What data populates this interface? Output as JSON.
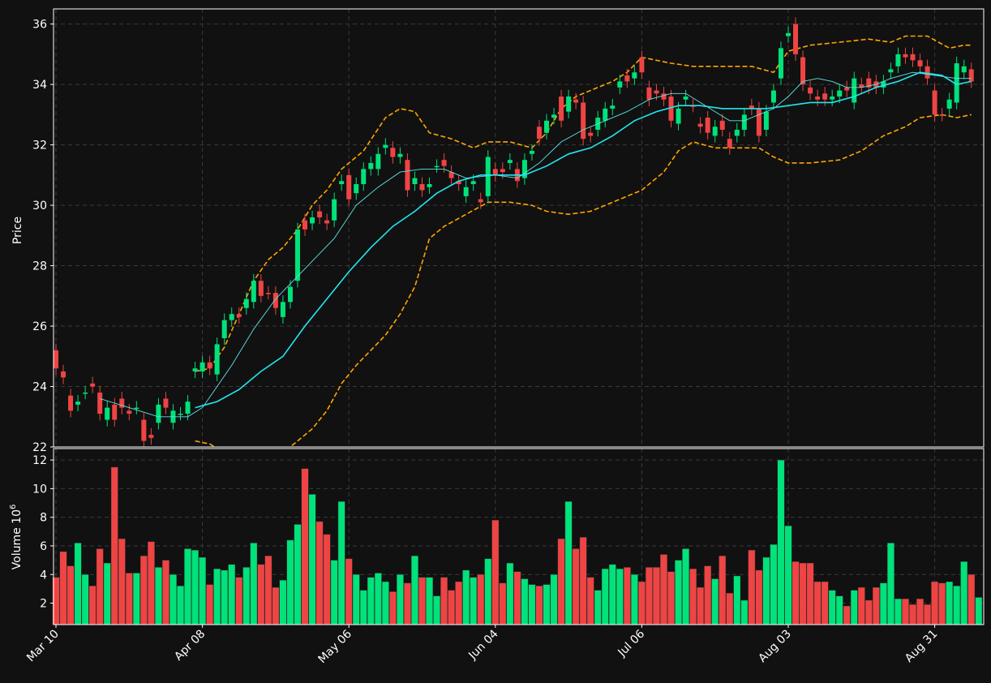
{
  "chart_data": {
    "type": "candlestick",
    "price_panel": {
      "ylabel": "Price",
      "ylim": [
        22,
        36.5
      ],
      "yticks": [
        "22",
        "24",
        "26",
        "28",
        "30",
        "32",
        "34",
        "36"
      ],
      "grid": true,
      "overlays": [
        "moving average (fast)",
        "moving average (slow)",
        "upper and lower bands"
      ]
    },
    "volume_panel": {
      "ylabel": "Volume",
      "ylabel_exponent": "10",
      "ylabel_power": "6",
      "ylim": [
        0.5,
        12.8
      ],
      "yticks": [
        "2",
        "4",
        "6",
        "8",
        "10",
        "12"
      ],
      "grid": true
    },
    "xticks": [
      {
        "label": "Mar 10",
        "index": 0
      },
      {
        "label": "Apr 08",
        "index": 20
      },
      {
        "label": "May 06",
        "index": 40
      },
      {
        "label": "Jun 04",
        "index": 60
      },
      {
        "label": "Jul 06",
        "index": 80
      },
      {
        "label": "Aug 03",
        "index": 100
      },
      {
        "label": "Aug 31",
        "index": 120
      }
    ],
    "colors": {
      "background": "#111111",
      "up": "#00e27a",
      "down": "#ef4444",
      "ma_fast": "#5ee6e6",
      "ma_slow": "#22e6f0",
      "bands": "#ffa500",
      "grid": "#3a3a3a",
      "frame": "#ffffff"
    },
    "ohlc_points": [
      [
        0,
        25.2,
        24.6,
        "down"
      ],
      [
        1,
        24.5,
        24.3,
        "down"
      ],
      [
        2,
        23.7,
        23.2,
        "down"
      ],
      [
        3,
        23.4,
        23.5,
        "up"
      ],
      [
        4,
        23.8,
        23.8,
        "up"
      ],
      [
        5,
        24.1,
        24.0,
        "down"
      ],
      [
        6,
        23.8,
        23.1,
        "down"
      ],
      [
        7,
        22.9,
        23.3,
        "up"
      ],
      [
        8,
        23.4,
        22.9,
        "down"
      ],
      [
        9,
        23.6,
        23.3,
        "down"
      ],
      [
        10,
        23.2,
        23.1,
        "down"
      ],
      [
        11,
        23.3,
        23.3,
        "up"
      ],
      [
        12,
        22.9,
        22.2,
        "down"
      ],
      [
        13,
        22.4,
        22.3,
        "down"
      ],
      [
        14,
        22.8,
        23.4,
        "up"
      ],
      [
        15,
        23.6,
        23.3,
        "down"
      ],
      [
        16,
        22.8,
        23.2,
        "up"
      ],
      [
        17,
        23.1,
        23.1,
        "up"
      ],
      [
        18,
        23.1,
        23.5,
        "up"
      ],
      [
        19,
        24.5,
        24.6,
        "up"
      ],
      [
        20,
        24.5,
        24.8,
        "up"
      ],
      [
        21,
        24.8,
        24.6,
        "down"
      ],
      [
        22,
        24.4,
        25.4,
        "up"
      ],
      [
        23,
        25.6,
        26.2,
        "up"
      ],
      [
        24,
        26.2,
        26.4,
        "up"
      ],
      [
        25,
        26.4,
        26.3,
        "down"
      ],
      [
        26,
        26.6,
        26.9,
        "up"
      ],
      [
        27,
        26.8,
        27.5,
        "up"
      ],
      [
        28,
        27.5,
        27.0,
        "down"
      ],
      [
        29,
        27.1,
        27.1,
        "down"
      ],
      [
        30,
        27.1,
        26.6,
        "down"
      ],
      [
        31,
        26.3,
        26.8,
        "up"
      ],
      [
        32,
        26.8,
        27.3,
        "up"
      ],
      [
        33,
        27.5,
        29.2,
        "up"
      ],
      [
        34,
        29.5,
        29.2,
        "down"
      ],
      [
        35,
        29.4,
        29.6,
        "up"
      ],
      [
        36,
        29.8,
        29.6,
        "down"
      ],
      [
        37,
        29.5,
        29.4,
        "down"
      ],
      [
        38,
        29.5,
        30.2,
        "up"
      ],
      [
        39,
        30.7,
        30.8,
        "up"
      ],
      [
        40,
        31.0,
        30.2,
        "down"
      ],
      [
        41,
        30.4,
        30.7,
        "up"
      ],
      [
        42,
        30.7,
        31.2,
        "up"
      ],
      [
        43,
        31.2,
        31.4,
        "up"
      ],
      [
        44,
        31.2,
        31.7,
        "up"
      ],
      [
        45,
        31.9,
        32.0,
        "up"
      ],
      [
        46,
        31.9,
        31.6,
        "down"
      ],
      [
        47,
        31.7,
        31.6,
        "up"
      ],
      [
        48,
        31.5,
        30.5,
        "down"
      ],
      [
        49,
        30.7,
        30.9,
        "up"
      ],
      [
        50,
        30.7,
        30.5,
        "down"
      ],
      [
        51,
        30.6,
        30.7,
        "up"
      ],
      [
        52,
        31.3,
        31.3,
        "up"
      ],
      [
        53,
        31.5,
        31.3,
        "down"
      ],
      [
        54,
        31.1,
        30.9,
        "down"
      ],
      [
        55,
        30.8,
        30.7,
        "down"
      ],
      [
        56,
        30.3,
        30.6,
        "up"
      ],
      [
        57,
        30.7,
        30.8,
        "up"
      ],
      [
        58,
        30.2,
        30.1,
        "down"
      ],
      [
        59,
        30.3,
        31.6,
        "up"
      ],
      [
        60,
        31.2,
        31.0,
        "down"
      ],
      [
        61,
        31.2,
        31.1,
        "down"
      ],
      [
        62,
        31.4,
        31.5,
        "up"
      ],
      [
        63,
        31.2,
        30.8,
        "down"
      ],
      [
        64,
        30.9,
        31.5,
        "up"
      ],
      [
        65,
        31.7,
        31.8,
        "up"
      ],
      [
        66,
        32.6,
        32.2,
        "down"
      ],
      [
        67,
        32.4,
        32.8,
        "up"
      ],
      [
        68,
        32.9,
        33.0,
        "up"
      ],
      [
        69,
        33.6,
        32.8,
        "down"
      ],
      [
        70,
        33.1,
        33.6,
        "up"
      ],
      [
        71,
        33.5,
        33.4,
        "down"
      ],
      [
        72,
        33.4,
        32.2,
        "down"
      ],
      [
        73,
        32.4,
        32.3,
        "down"
      ],
      [
        74,
        32.5,
        32.9,
        "up"
      ],
      [
        75,
        32.8,
        33.2,
        "up"
      ],
      [
        76,
        33.2,
        33.3,
        "up"
      ],
      [
        77,
        33.9,
        34.1,
        "up"
      ],
      [
        78,
        34.3,
        34.1,
        "down"
      ],
      [
        79,
        34.2,
        34.4,
        "up"
      ],
      [
        80,
        34.9,
        34.4,
        "down"
      ],
      [
        81,
        33.9,
        33.5,
        "down"
      ],
      [
        82,
        33.8,
        33.7,
        "down"
      ],
      [
        83,
        33.7,
        33.5,
        "down"
      ],
      [
        84,
        33.6,
        32.8,
        "down"
      ],
      [
        85,
        32.7,
        33.2,
        "up"
      ],
      [
        86,
        33.5,
        33.6,
        "up"
      ],
      [
        87,
        33.3,
        33.3,
        "down"
      ],
      [
        88,
        32.7,
        32.6,
        "down"
      ],
      [
        89,
        32.9,
        32.4,
        "down"
      ],
      [
        90,
        32.3,
        32.6,
        "up"
      ],
      [
        91,
        32.8,
        32.5,
        "down"
      ],
      [
        92,
        32.2,
        31.9,
        "down"
      ],
      [
        93,
        32.3,
        32.5,
        "up"
      ],
      [
        94,
        32.5,
        33.0,
        "up"
      ],
      [
        95,
        33.3,
        33.2,
        "down"
      ],
      [
        96,
        33.2,
        32.3,
        "down"
      ],
      [
        97,
        32.5,
        33.1,
        "up"
      ],
      [
        98,
        33.4,
        33.8,
        "up"
      ],
      [
        99,
        34.2,
        35.2,
        "up"
      ],
      [
        100,
        35.7,
        35.6,
        "up"
      ],
      [
        101,
        36.0,
        35.0,
        "down"
      ],
      [
        102,
        34.9,
        34.0,
        "down"
      ],
      [
        103,
        33.9,
        33.7,
        "down"
      ],
      [
        104,
        33.6,
        33.5,
        "down"
      ],
      [
        105,
        33.7,
        33.5,
        "down"
      ],
      [
        106,
        33.6,
        33.5,
        "up"
      ],
      [
        107,
        33.6,
        33.8,
        "up"
      ],
      [
        108,
        33.9,
        33.8,
        "down"
      ],
      [
        109,
        33.4,
        34.2,
        "up"
      ],
      [
        110,
        34.0,
        33.9,
        "down"
      ],
      [
        111,
        34.2,
        33.9,
        "down"
      ],
      [
        112,
        34.1,
        33.9,
        "down"
      ],
      [
        113,
        33.9,
        34.1,
        "up"
      ],
      [
        114,
        34.4,
        34.5,
        "up"
      ],
      [
        115,
        34.6,
        35.0,
        "up"
      ],
      [
        116,
        35.0,
        34.9,
        "down"
      ],
      [
        117,
        35.0,
        34.8,
        "down"
      ],
      [
        118,
        34.8,
        34.6,
        "down"
      ],
      [
        119,
        34.6,
        34.2,
        "down"
      ],
      [
        120,
        33.8,
        33.0,
        "down"
      ],
      [
        121,
        33.0,
        33.0,
        "down"
      ],
      [
        122,
        33.2,
        33.5,
        "up"
      ],
      [
        123,
        33.4,
        34.7,
        "up"
      ],
      [
        124,
        34.4,
        34.6,
        "up"
      ],
      [
        125,
        34.5,
        34.1,
        "down"
      ]
    ],
    "volume_values": [
      3.8,
      5.6,
      4.6,
      6.2,
      4.0,
      3.2,
      5.8,
      4.8,
      11.5,
      6.5,
      4.1,
      4.1,
      5.3,
      6.3,
      4.5,
      5.0,
      4.0,
      3.2,
      5.8,
      5.7,
      5.2,
      3.3,
      4.4,
      4.3,
      4.7,
      3.8,
      4.5,
      6.2,
      4.7,
      5.3,
      3.1,
      3.6,
      6.4,
      7.5,
      11.4,
      9.6,
      7.7,
      6.8,
      5.0,
      9.1,
      5.1,
      4.0,
      2.9,
      3.8,
      4.1,
      3.5,
      2.8,
      4.0,
      3.4,
      5.3,
      3.8,
      3.8,
      2.5,
      3.8,
      2.9,
      3.5,
      4.3,
      3.8,
      4.0,
      5.1,
      7.8,
      3.4,
      4.8,
      4.2,
      3.7,
      3.3,
      3.2,
      3.3,
      4.0,
      6.5,
      9.1,
      5.8,
      6.6,
      3.8,
      2.9,
      4.4,
      4.7,
      4.4,
      4.5,
      4.0,
      3.5,
      4.5,
      4.5,
      5.4,
      4.2,
      5.0,
      5.8,
      4.4,
      3.1,
      4.6,
      3.7,
      5.3,
      2.7,
      3.9,
      2.2,
      5.7,
      4.3,
      5.2,
      6.1,
      12.0,
      7.4,
      4.9,
      4.8,
      4.8,
      3.5,
      3.5,
      2.9,
      2.5,
      1.8,
      2.9,
      3.1,
      2.2,
      3.1,
      3.4,
      6.2,
      2.3,
      2.3,
      1.9,
      2.3,
      1.9,
      3.5,
      3.4,
      3.5,
      3.2,
      4.9,
      4.0,
      2.4
    ],
    "ma_fast_line": [
      [
        6,
        23.6
      ],
      [
        10,
        23.3
      ],
      [
        14,
        23.0
      ],
      [
        18,
        23.0
      ],
      [
        20,
        23.3
      ],
      [
        22,
        24.0
      ],
      [
        24,
        24.7
      ],
      [
        27,
        25.9
      ],
      [
        30,
        26.9
      ],
      [
        34,
        27.9
      ],
      [
        38,
        28.9
      ],
      [
        41,
        30.0
      ],
      [
        44,
        30.6
      ],
      [
        47,
        31.1
      ],
      [
        50,
        31.2
      ],
      [
        53,
        31.2
      ],
      [
        56,
        30.9
      ],
      [
        60,
        31.0
      ],
      [
        63,
        30.9
      ],
      [
        66,
        31.4
      ],
      [
        69,
        32.1
      ],
      [
        72,
        32.5
      ],
      [
        75,
        32.8
      ],
      [
        78,
        33.1
      ],
      [
        81,
        33.5
      ],
      [
        84,
        33.7
      ],
      [
        86,
        33.7
      ],
      [
        88,
        33.4
      ],
      [
        90,
        33.1
      ],
      [
        92,
        32.8
      ],
      [
        94,
        32.8
      ],
      [
        96,
        33.0
      ],
      [
        98,
        33.2
      ],
      [
        100,
        33.6
      ],
      [
        102,
        34.1
      ],
      [
        104,
        34.2
      ],
      [
        106,
        34.1
      ],
      [
        108,
        33.9
      ],
      [
        110,
        33.9
      ],
      [
        112,
        34.0
      ],
      [
        114,
        34.2
      ],
      [
        117,
        34.4
      ],
      [
        120,
        34.3
      ],
      [
        123,
        34.2
      ],
      [
        125,
        34.2
      ]
    ],
    "ma_slow_line": [
      [
        19,
        23.3
      ],
      [
        22,
        23.5
      ],
      [
        25,
        23.9
      ],
      [
        28,
        24.5
      ],
      [
        31,
        25.0
      ],
      [
        34,
        26.0
      ],
      [
        37,
        26.9
      ],
      [
        40,
        27.8
      ],
      [
        43,
        28.6
      ],
      [
        46,
        29.3
      ],
      [
        49,
        29.8
      ],
      [
        52,
        30.4
      ],
      [
        55,
        30.8
      ],
      [
        58,
        31.0
      ],
      [
        61,
        31.0
      ],
      [
        64,
        31.0
      ],
      [
        67,
        31.3
      ],
      [
        70,
        31.7
      ],
      [
        73,
        31.9
      ],
      [
        76,
        32.3
      ],
      [
        79,
        32.8
      ],
      [
        82,
        33.1
      ],
      [
        85,
        33.3
      ],
      [
        88,
        33.3
      ],
      [
        91,
        33.2
      ],
      [
        94,
        33.2
      ],
      [
        97,
        33.2
      ],
      [
        100,
        33.3
      ],
      [
        103,
        33.4
      ],
      [
        106,
        33.4
      ],
      [
        109,
        33.6
      ],
      [
        112,
        33.9
      ],
      [
        115,
        34.1
      ],
      [
        118,
        34.4
      ],
      [
        121,
        34.3
      ],
      [
        123,
        34.0
      ],
      [
        125,
        34.1
      ]
    ],
    "upper_band": [
      [
        19,
        24.5
      ],
      [
        21,
        24.6
      ],
      [
        23,
        25.3
      ],
      [
        25,
        26.4
      ],
      [
        27,
        27.5
      ],
      [
        29,
        28.2
      ],
      [
        31,
        28.6
      ],
      [
        33,
        29.2
      ],
      [
        35,
        30.0
      ],
      [
        37,
        30.5
      ],
      [
        39,
        31.2
      ],
      [
        42,
        31.8
      ],
      [
        45,
        32.9
      ],
      [
        47,
        33.2
      ],
      [
        49,
        33.1
      ],
      [
        51,
        32.4
      ],
      [
        54,
        32.2
      ],
      [
        57,
        31.9
      ],
      [
        59,
        32.1
      ],
      [
        62,
        32.1
      ],
      [
        65,
        31.9
      ],
      [
        67,
        32.4
      ],
      [
        69,
        33.2
      ],
      [
        71,
        33.6
      ],
      [
        74,
        33.9
      ],
      [
        76,
        34.1
      ],
      [
        78,
        34.4
      ],
      [
        80,
        34.9
      ],
      [
        82,
        34.8
      ],
      [
        84,
        34.7
      ],
      [
        87,
        34.6
      ],
      [
        90,
        34.6
      ],
      [
        95,
        34.6
      ],
      [
        98,
        34.4
      ],
      [
        100,
        35.1
      ],
      [
        103,
        35.3
      ],
      [
        107,
        35.4
      ],
      [
        111,
        35.5
      ],
      [
        114,
        35.4
      ],
      [
        116,
        35.6
      ],
      [
        119,
        35.6
      ],
      [
        122,
        35.2
      ],
      [
        124,
        35.3
      ],
      [
        125,
        35.3
      ]
    ],
    "lower_band": [
      [
        19,
        22.2
      ],
      [
        21,
        22.1
      ],
      [
        23,
        21.8
      ],
      [
        31,
        21.8
      ],
      [
        33,
        22.2
      ],
      [
        35,
        22.6
      ],
      [
        37,
        23.2
      ],
      [
        39,
        24.1
      ],
      [
        41,
        24.7
      ],
      [
        43,
        25.2
      ],
      [
        45,
        25.7
      ],
      [
        47,
        26.4
      ],
      [
        49,
        27.3
      ],
      [
        51,
        28.9
      ],
      [
        53,
        29.3
      ],
      [
        56,
        29.7
      ],
      [
        59,
        30.1
      ],
      [
        62,
        30.1
      ],
      [
        65,
        30.0
      ],
      [
        67,
        29.8
      ],
      [
        70,
        29.7
      ],
      [
        73,
        29.8
      ],
      [
        75,
        30.0
      ],
      [
        78,
        30.3
      ],
      [
        80,
        30.5
      ],
      [
        83,
        31.1
      ],
      [
        85,
        31.8
      ],
      [
        87,
        32.1
      ],
      [
        90,
        31.9
      ],
      [
        93,
        31.9
      ],
      [
        96,
        31.9
      ],
      [
        98,
        31.6
      ],
      [
        100,
        31.4
      ],
      [
        103,
        31.4
      ],
      [
        107,
        31.5
      ],
      [
        110,
        31.8
      ],
      [
        113,
        32.3
      ],
      [
        116,
        32.6
      ],
      [
        118,
        32.9
      ],
      [
        121,
        33.0
      ],
      [
        123,
        32.9
      ],
      [
        125,
        33.0
      ]
    ]
  }
}
